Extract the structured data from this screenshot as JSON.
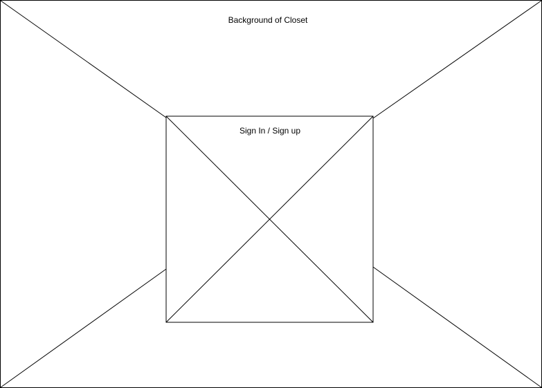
{
  "background": {
    "label": "Background of Closet",
    "stroke_color": "#000000",
    "fill_color": "#ffffff"
  },
  "panel": {
    "label": "Sign In / Sign up",
    "stroke_color": "#000000",
    "fill_color": "#ffffff"
  }
}
